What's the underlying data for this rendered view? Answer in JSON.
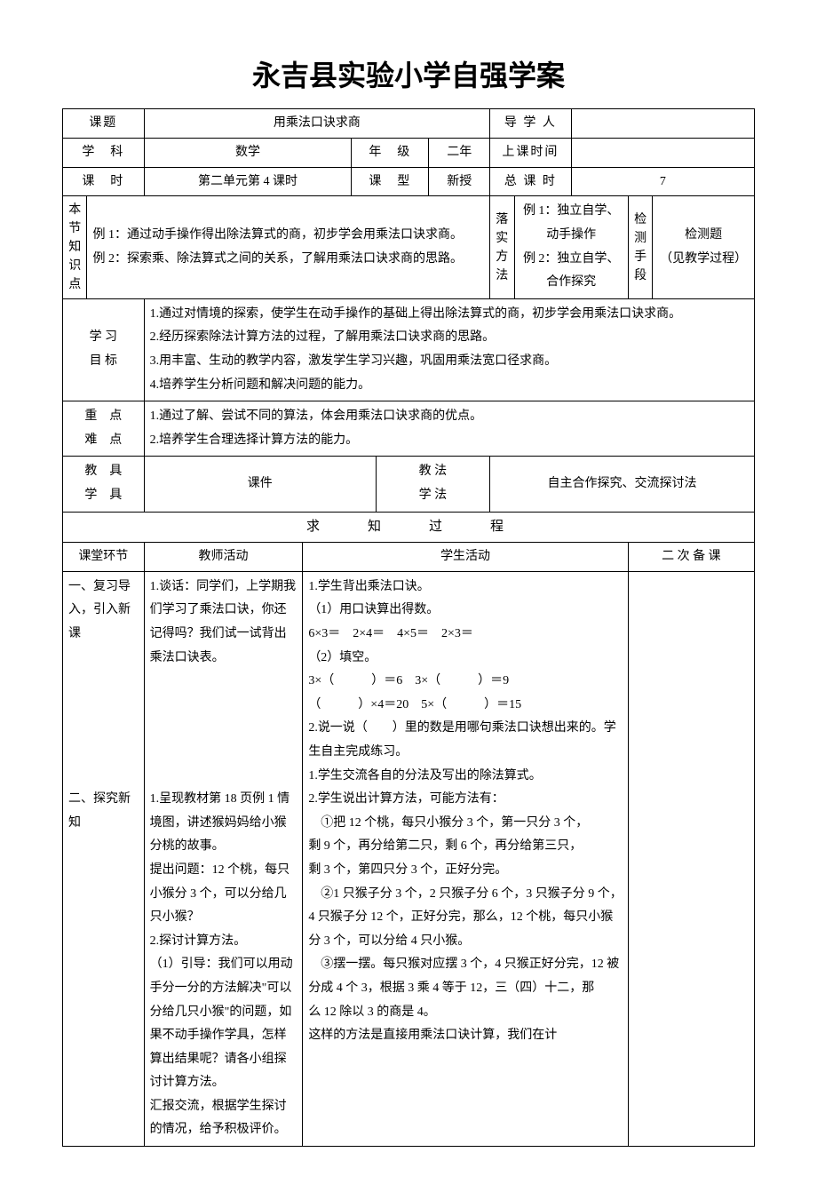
{
  "title": "永吉县实验小学自强学案",
  "header": {
    "keti_label": "课题",
    "keti_value": "用乘法口诀求商",
    "daoxueren_label": "导 学 人",
    "daoxueren_value": "",
    "xueke_label": "学　科",
    "xueke_value": "数学",
    "nianji_label": "年　级",
    "nianji_value": "二年",
    "shangke_label": "上课时间",
    "shangke_value": "",
    "keshi_label": "课　时",
    "keshi_value": "第二单元第 4 课时",
    "kexing_label": "课　型",
    "kexing_value": "新授",
    "zongkeshi_label": "总 课 时",
    "zongkeshi_value": "7"
  },
  "knowledge": {
    "label": "本节知识点",
    "content": "例 1：通过动手操作得出除法算式的商，初步学会用乘法口诀求商。\n例 2：探索乘、除法算式之间的关系，了解用乘法口诀求商的思路。",
    "luoshi_label": "落实方法",
    "luoshi_content": "例 1：独立自学、动手操作\n例 2：独立自学、合作探究",
    "jiance_label": "检测手段",
    "jiance_content": "检测题\n（见教学过程）"
  },
  "objectives": {
    "label": "学 习\n目 标",
    "content": "1.通过对情境的探索，使学生在动手操作的基础上得出除法算式的商，初步学会用乘法口诀求商。\n2.经历探索除法计算方法的过程，了解用乘法口诀求商的思路。\n3.用丰富、生动的教学内容，激发学生学习兴趣，巩固用乘法宽口径求商。\n4.培养学生分析问题和解决问题的能力。"
  },
  "keypoints": {
    "label": "重　点\n难　点",
    "content": "1.通过了解、尝试不同的算法，体会用乘法口诀求商的优点。\n2.培养学生合理选择计算方法的能力。"
  },
  "tools": {
    "jiaoju_label": "教　具\n学　具",
    "jiaoju_value": "课件",
    "jiaofa_label": "教 法\n学 法",
    "jiaofa_value": "自主合作探究、交流探讨法"
  },
  "process_title": "求　　知　　过　　程",
  "cols": {
    "huanjie": "课堂环节",
    "jiaoshi": "教师活动",
    "xuesheng": "学生活动",
    "erci": "二 次 备 课"
  },
  "body": {
    "huanjie": "一、复习导入，引入新课\n\n\n\n\n\n\n二、探究新知",
    "jiaoshi": "1.谈话：同学们，上学期我们学习了乘法口诀，你还记得吗？我们试一试背出乘法口诀表。\n\n\n\n\n\n1.呈现教材第 18 页例 1 情境图，讲述猴妈妈给小猴分桃的故事。\n提出问题：12 个桃，每只小猴分 3 个，可以分给几只小猴？\n2.探讨计算方法。\n（1）引导：我们可以用动手分一分的方法解决\"可以分给几只小猴\"的问题，如果不动手操作学具，怎样算出结果呢？请各小组探讨计算方法。\n汇报交流，根据学生探讨的情况，给予积极评价。",
    "xuesheng": "1.学生背出乘法口诀。\n（1）用口诀算出得数。\n6×3＝　2×4＝　4×5＝　2×3＝\n（2）填空。\n3×（　　　）＝6　3×（　　　）＝9\n（　　　）×4＝20　5×（　　　）＝15\n2.说一说（　　）里的数是用哪句乘法口诀想出来的。学生自主完成练习。\n1.学生交流各自的分法及写出的除法算式。\n2.学生说出计算方法，可能方法有：\n　①把 12 个桃，每只小猴分 3 个，第一只分 3 个，剩 9 个，再分给第二只，剩 6 个，再分给第三只，剩 3 个，第四只分 3 个，正好分完。\n　②1 只猴子分 3 个，2 只猴子分 6 个，3 只猴子分 9 个，4 只猴子分 12 个，正好分完，那么，12 个桃，每只小猴分 3 个，可以分给 4 只小猴。\n　③摆一摆。每只猴对应摆 3 个，4 只猴正好分完，12 被分成 4 个 3，根据 3 乘 4 等于 12，三（四）十二，那么 12 除以 3 的商是 4。\n这样的方法是直接用乘法口诀计算，我们在计"
  },
  "colors": {
    "border": "#000000",
    "background": "#ffffff",
    "text": "#000000"
  },
  "fonts": {
    "title_size": 32,
    "body_size": 14,
    "family": "SimSun"
  }
}
